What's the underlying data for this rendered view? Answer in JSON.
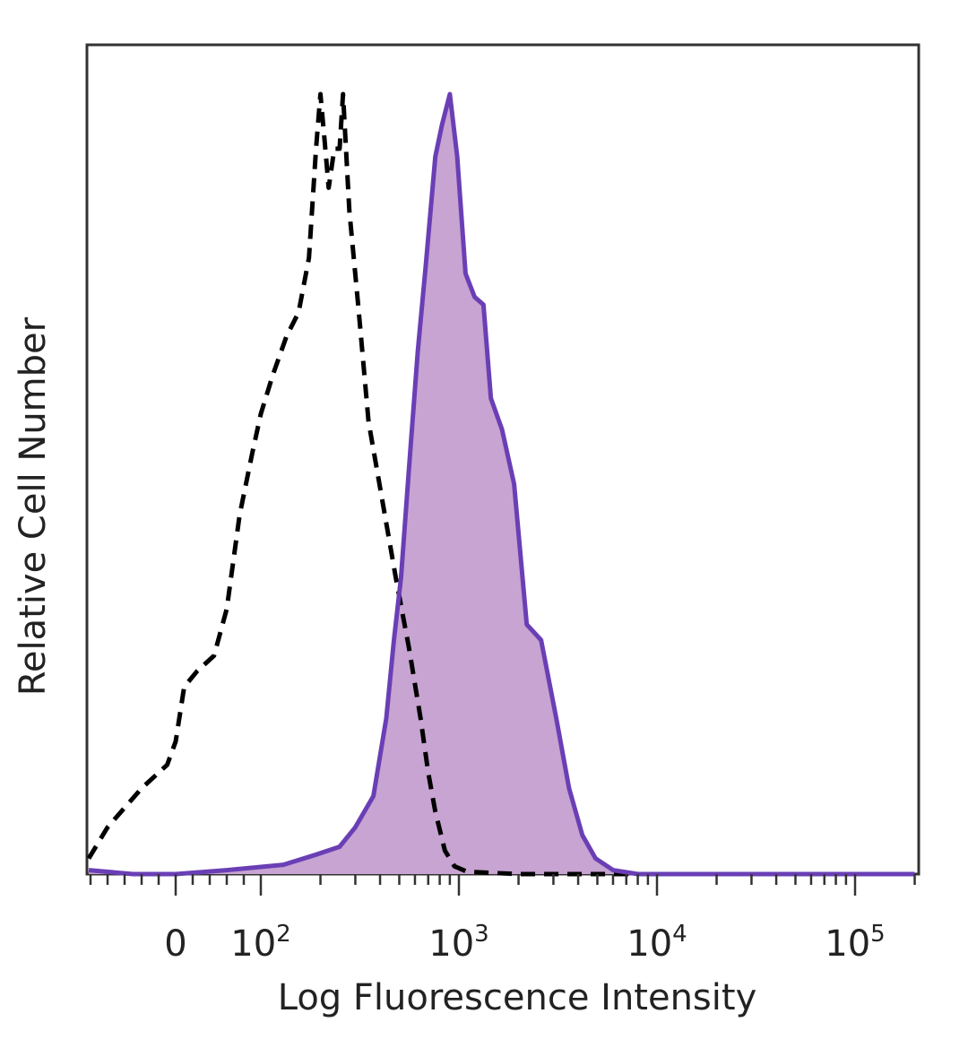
{
  "chart_data": {
    "type": "area",
    "title": "",
    "xlabel": "Log Fluorescence Intensity",
    "ylabel": "Relative Cell Number",
    "x_scale": "biexponential",
    "x_tick_labels": [
      {
        "label": "0",
        "value": "0"
      },
      {
        "label": "10",
        "sup": "2",
        "value": "100"
      },
      {
        "label": "10",
        "sup": "3",
        "value": "1000"
      },
      {
        "label": "10",
        "sup": "4",
        "value": "10000"
      },
      {
        "label": "10",
        "sup": "5",
        "value": "100000"
      }
    ],
    "ylim": [
      0,
      100
    ],
    "grid": false,
    "legend": "none",
    "series": [
      {
        "style": "dashed",
        "color": "#000000",
        "fill": "none",
        "points": [
          {
            "x": -120,
            "y": 2
          },
          {
            "x": -80,
            "y": 6
          },
          {
            "x": -40,
            "y": 11
          },
          {
            "x": -10,
            "y": 14
          },
          {
            "x": 0,
            "y": 17
          },
          {
            "x": 10,
            "y": 24
          },
          {
            "x": 25,
            "y": 26
          },
          {
            "x": 45,
            "y": 28
          },
          {
            "x": 60,
            "y": 34
          },
          {
            "x": 75,
            "y": 46
          },
          {
            "x": 90,
            "y": 54
          },
          {
            "x": 100,
            "y": 59
          },
          {
            "x": 115,
            "y": 64
          },
          {
            "x": 135,
            "y": 69
          },
          {
            "x": 155,
            "y": 72
          },
          {
            "x": 175,
            "y": 79
          },
          {
            "x": 190,
            "y": 93
          },
          {
            "x": 200,
            "y": 100
          },
          {
            "x": 210,
            "y": 94
          },
          {
            "x": 220,
            "y": 88
          },
          {
            "x": 235,
            "y": 93
          },
          {
            "x": 250,
            "y": 93
          },
          {
            "x": 260,
            "y": 100
          },
          {
            "x": 280,
            "y": 85
          },
          {
            "x": 310,
            "y": 73
          },
          {
            "x": 350,
            "y": 58
          },
          {
            "x": 410,
            "y": 48
          },
          {
            "x": 480,
            "y": 38
          },
          {
            "x": 560,
            "y": 29
          },
          {
            "x": 640,
            "y": 20
          },
          {
            "x": 700,
            "y": 13
          },
          {
            "x": 760,
            "y": 8
          },
          {
            "x": 850,
            "y": 3
          },
          {
            "x": 950,
            "y": 1
          },
          {
            "x": 1100,
            "y": 0.3
          },
          {
            "x": 2000,
            "y": 0
          },
          {
            "x": 10000,
            "y": 0
          },
          {
            "x": 200000,
            "y": 0
          }
        ]
      },
      {
        "style": "solid",
        "color": "#6a3fb5",
        "fill": "#c7a4d1",
        "points": [
          {
            "x": -150,
            "y": 0.5
          },
          {
            "x": -50,
            "y": 0
          },
          {
            "x": 0,
            "y": 0
          },
          {
            "x": 60,
            "y": 0.5
          },
          {
            "x": 130,
            "y": 1.2
          },
          {
            "x": 190,
            "y": 2.5
          },
          {
            "x": 250,
            "y": 3.5
          },
          {
            "x": 300,
            "y": 6
          },
          {
            "x": 370,
            "y": 10
          },
          {
            "x": 430,
            "y": 20
          },
          {
            "x": 470,
            "y": 30
          },
          {
            "x": 510,
            "y": 38
          },
          {
            "x": 560,
            "y": 52
          },
          {
            "x": 620,
            "y": 67
          },
          {
            "x": 680,
            "y": 78
          },
          {
            "x": 760,
            "y": 92
          },
          {
            "x": 820,
            "y": 96
          },
          {
            "x": 900,
            "y": 100
          },
          {
            "x": 980,
            "y": 92
          },
          {
            "x": 1080,
            "y": 77
          },
          {
            "x": 1200,
            "y": 74
          },
          {
            "x": 1330,
            "y": 73
          },
          {
            "x": 1450,
            "y": 61
          },
          {
            "x": 1650,
            "y": 57
          },
          {
            "x": 1900,
            "y": 50
          },
          {
            "x": 2200,
            "y": 32
          },
          {
            "x": 2600,
            "y": 30
          },
          {
            "x": 3100,
            "y": 20
          },
          {
            "x": 3600,
            "y": 11
          },
          {
            "x": 4200,
            "y": 5
          },
          {
            "x": 4900,
            "y": 2
          },
          {
            "x": 6000,
            "y": 0.5
          },
          {
            "x": 8000,
            "y": 0
          },
          {
            "x": 200000,
            "y": 0
          }
        ]
      }
    ]
  }
}
